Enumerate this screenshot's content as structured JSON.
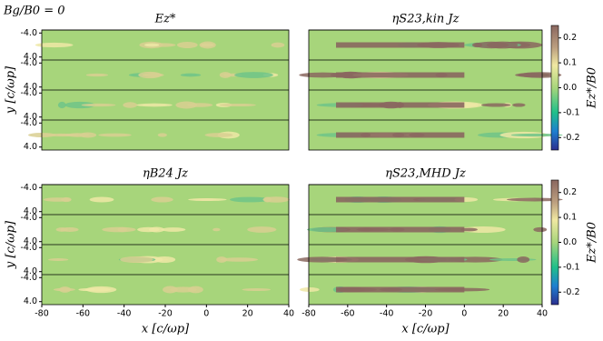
{
  "title": "Bg/B0 = 0",
  "chart_data": [
    {
      "type": "heatmap",
      "title": "Ez*",
      "y_label": "y [c/ωp]",
      "ylim": [
        -5,
        5
      ],
      "yticks": [
        {
          "value": -4,
          "label": "-4.0"
        },
        {
          "value": 4,
          "label": "4.0"
        }
      ]
    },
    {
      "type": "heatmap",
      "title": "ηS23,kin Jz",
      "colorbar": {
        "label": "Ez*/B0",
        "lim": [
          -0.25,
          0.25
        ],
        "ticks": [
          -0.2,
          -0.1,
          {
            "value": 0,
            "label": "0.0"
          },
          0.1,
          0.2
        ]
      }
    },
    {
      "type": "heatmap",
      "title": "ηB24 Jz",
      "y_label": "y [c/ωp]",
      "x_label": "x [c/ωp]",
      "ylim": [
        -5,
        5
      ],
      "yticks": [
        {
          "value": -4,
          "label": "-4.0"
        },
        {
          "value": 4,
          "label": "4.0"
        }
      ],
      "xlim": [
        -80,
        40
      ],
      "xticks": [
        -80,
        -60,
        -40,
        -20,
        0,
        20,
        40
      ]
    },
    {
      "type": "heatmap",
      "title": "ηS23,MHD Jz",
      "x_label": "x [c/ωp]",
      "xlim": [
        -80,
        40
      ],
      "xticks": [
        -80,
        -60,
        -40,
        -20,
        0,
        20,
        40
      ],
      "colorbar": {
        "label": "Ez*/B0",
        "lim": [
          -0.25,
          0.25
        ],
        "ticks": [
          -0.2,
          -0.1,
          {
            "value": 0,
            "label": "0.0"
          },
          0.1,
          0.2
        ]
      }
    }
  ]
}
